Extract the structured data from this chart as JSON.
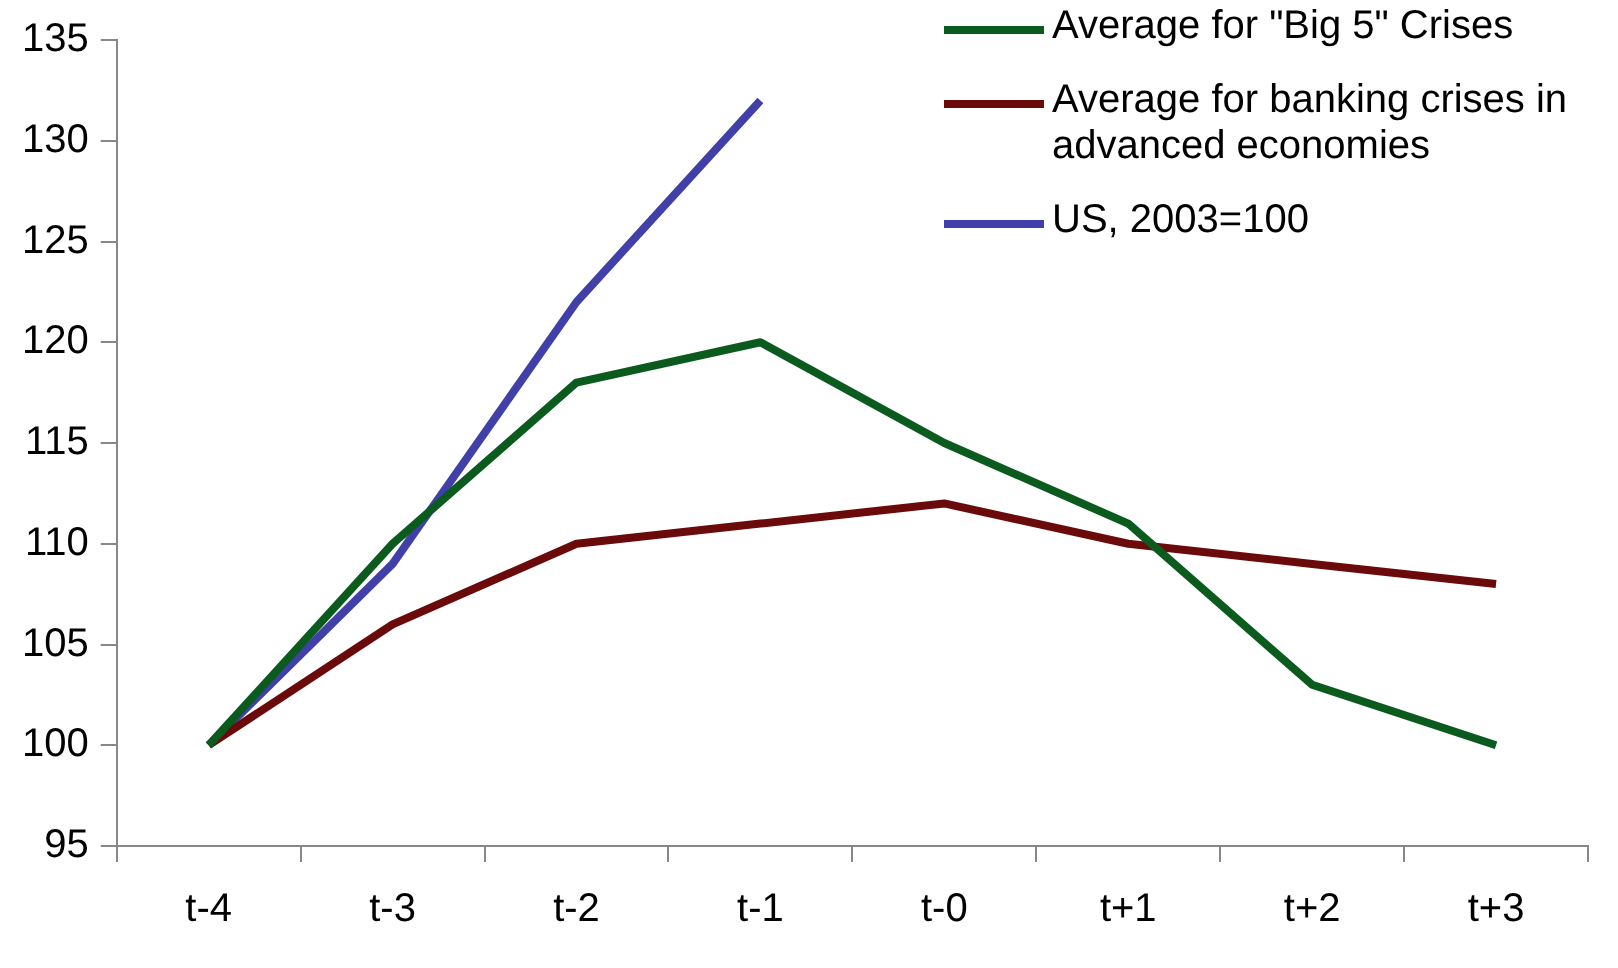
{
  "chart_data": {
    "type": "line",
    "categories": [
      "t-4",
      "t-3",
      "t-2",
      "t-1",
      "t-0",
      "t+1",
      "t+2",
      "t+3"
    ],
    "series": [
      {
        "name": "Average for \"Big 5\" Crises",
        "color": "#0b5a1e",
        "values": [
          100,
          110,
          118,
          120,
          115,
          111,
          103,
          100
        ]
      },
      {
        "name": "Average for banking crises in advanced economies",
        "color": "#6b0a0a",
        "values": [
          100,
          106,
          110,
          111,
          112,
          110,
          109,
          108
        ]
      },
      {
        "name": "US, 2003=100",
        "color": "#4040a8",
        "values": [
          100,
          109,
          122,
          132,
          null,
          null,
          null,
          null
        ]
      }
    ],
    "ylim": [
      95,
      135
    ],
    "yticks": [
      95,
      100,
      105,
      110,
      115,
      120,
      125,
      130,
      135
    ],
    "grid": false,
    "legend": "top right",
    "marker": "none",
    "line_style": "solid"
  }
}
